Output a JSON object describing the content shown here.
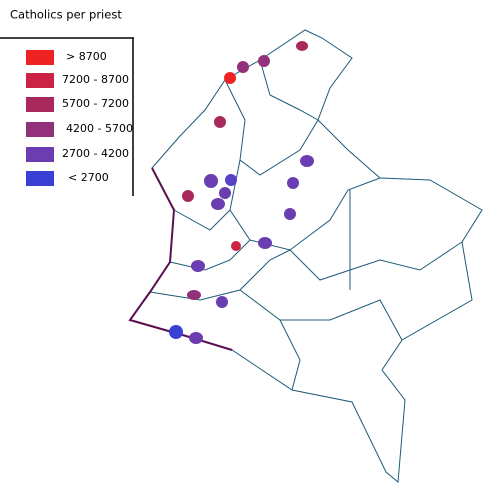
{
  "legend": {
    "title": "Catholics per priest",
    "items": [
      {
        "label": "> 8700",
        "color": "#ee2222"
      },
      {
        "label": "7200 - 8700",
        "color": "#cc2244"
      },
      {
        "label": "5700 - 7200",
        "color": "#a82a5c"
      },
      {
        "label": "4200 - 5700",
        "color": "#92307c"
      },
      {
        "label": "2700 - 4200",
        "color": "#6a3eb0"
      },
      {
        "label": "< 2700",
        "color": "#3a40d4"
      }
    ]
  }
}
